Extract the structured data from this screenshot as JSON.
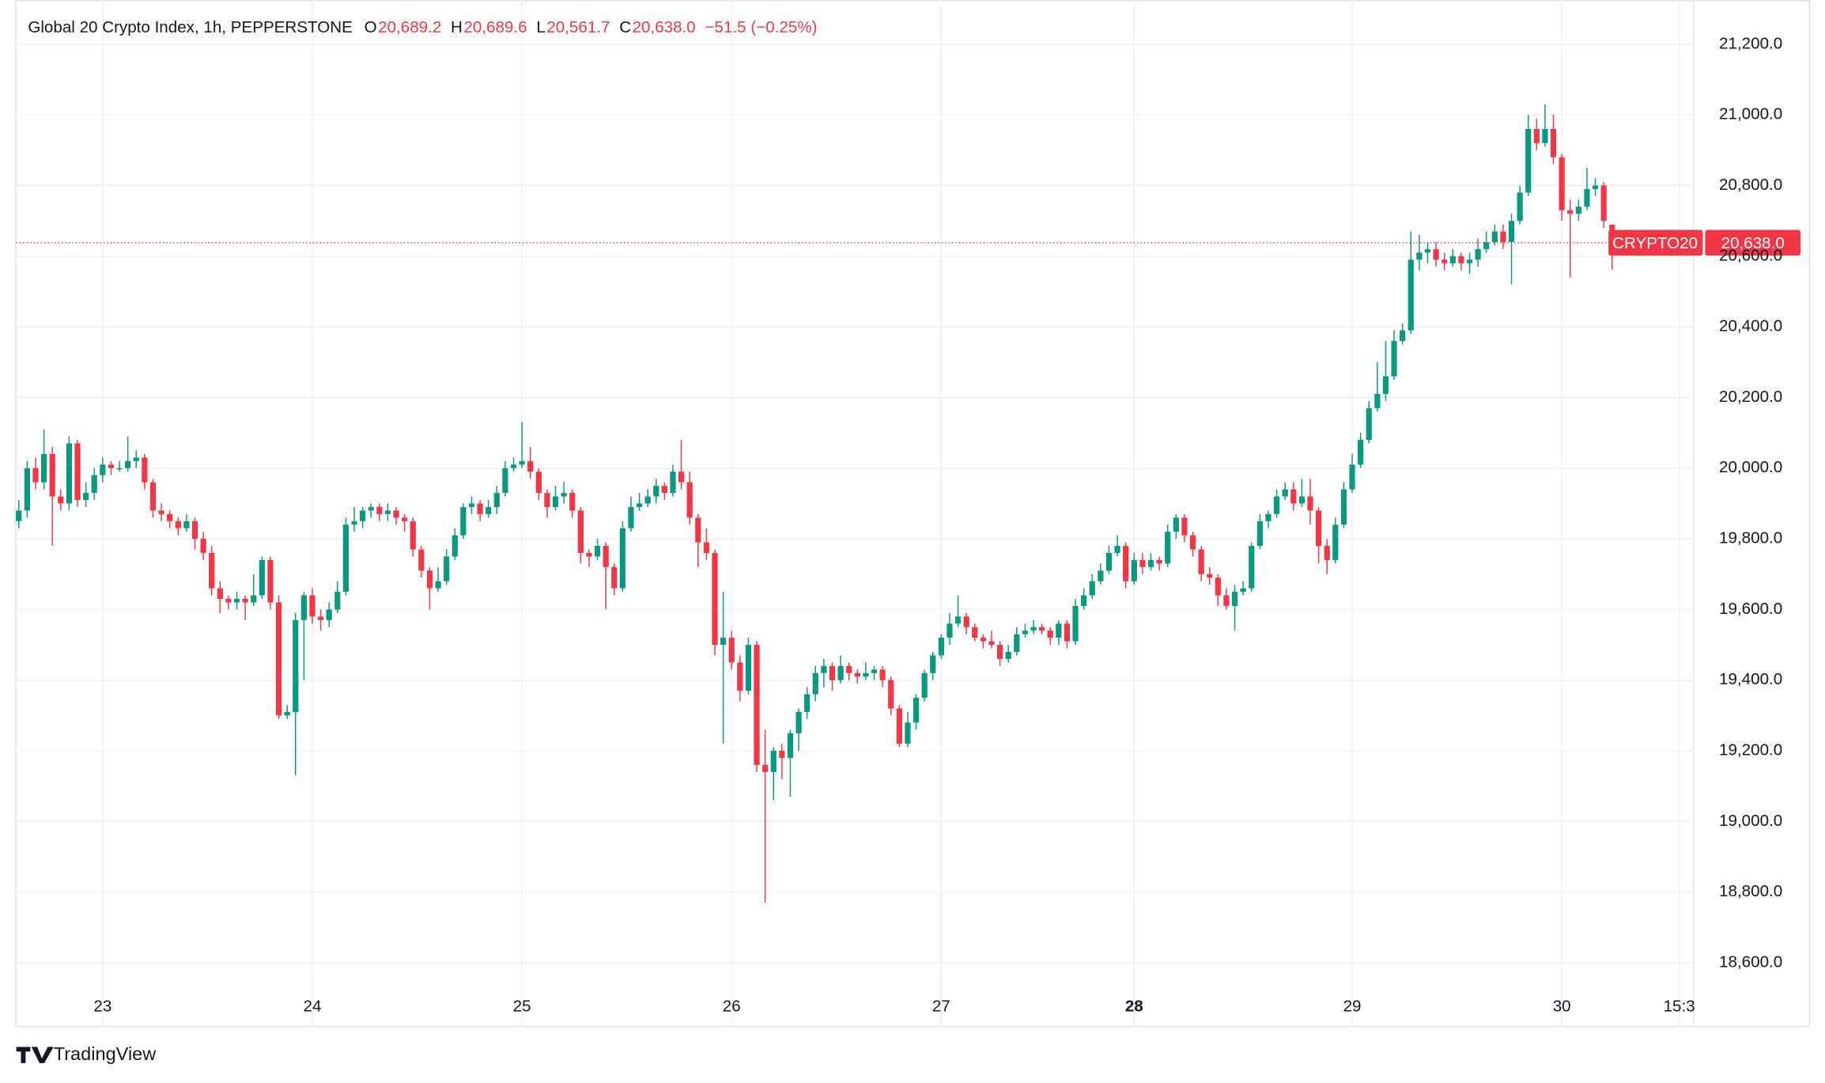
{
  "chart_data": {
    "type": "candlestick",
    "title": "Global 20 Crypto Index, 1h, PEPPERSTONE",
    "legend": {
      "open_label": "O",
      "open": "20,689.2",
      "high_label": "H",
      "high": "20,689.6",
      "low_label": "L",
      "low": "20,561.7",
      "close_label": "C",
      "close": "20,638.0",
      "change": "−51.5 (−0.25%)"
    },
    "symbol": "CRYPTO20",
    "last_price": 20638.0,
    "last_price_label": "20,638.0",
    "watermark": "TradingView",
    "up_color": "#089981",
    "down_color": "#f23645",
    "grid": true,
    "xlim": [
      -0.3,
      199.7
    ],
    "ylim": [
      18418,
      21325
    ],
    "xticks": [
      {
        "value": 10,
        "label": "23"
      },
      {
        "value": 35,
        "label": "24"
      },
      {
        "value": 60,
        "label": "25"
      },
      {
        "value": 85,
        "label": "26"
      },
      {
        "value": 110,
        "label": "27"
      },
      {
        "value": 133,
        "label": "28"
      },
      {
        "value": 159,
        "label": "29"
      },
      {
        "value": 184,
        "label": "30"
      },
      {
        "value": 198,
        "label": "15:3"
      }
    ],
    "bold_xtick": 5,
    "yticks": [
      {
        "value": 18600,
        "label": "18,600.0"
      },
      {
        "value": 18800,
        "label": "18,800.0"
      },
      {
        "value": 19000,
        "label": "19,000.0"
      },
      {
        "value": 19200,
        "label": "19,200.0"
      },
      {
        "value": 19400,
        "label": "19,400.0"
      },
      {
        "value": 19600,
        "label": "19,600.0"
      },
      {
        "value": 19800,
        "label": "19,800.0"
      },
      {
        "value": 20000,
        "label": "20,000.0"
      },
      {
        "value": 20200,
        "label": "20,200.0"
      },
      {
        "value": 20400,
        "label": "20,400.0"
      },
      {
        "value": 20600,
        "label": "20,600.0"
      },
      {
        "value": 20800,
        "label": "20,800.0"
      },
      {
        "value": 21000,
        "label": "21,000.0"
      },
      {
        "value": 21200,
        "label": "21,200.0"
      }
    ],
    "ohlc": [
      [
        19850,
        19910,
        19830,
        19880
      ],
      [
        19880,
        20020,
        19860,
        20000
      ],
      [
        20000,
        20030,
        19940,
        19960
      ],
      [
        19960,
        20110,
        19940,
        20040
      ],
      [
        20040,
        20060,
        19780,
        19920
      ],
      [
        19920,
        19940,
        19880,
        19900
      ],
      [
        19900,
        20090,
        19880,
        20070
      ],
      [
        20070,
        20080,
        19890,
        19910
      ],
      [
        19910,
        19960,
        19890,
        19930
      ],
      [
        19930,
        20000,
        19910,
        19980
      ],
      [
        19980,
        20030,
        19960,
        20010
      ],
      [
        20010,
        20020,
        19980,
        20000
      ],
      [
        20000,
        20020,
        19990,
        20000
      ],
      [
        20000,
        20090,
        19990,
        20020
      ],
      [
        20020,
        20050,
        20000,
        20030
      ],
      [
        20030,
        20040,
        19940,
        19960
      ],
      [
        19960,
        19970,
        19860,
        19880
      ],
      [
        19880,
        19900,
        19850,
        19870
      ],
      [
        19870,
        19880,
        19830,
        19850
      ],
      [
        19850,
        19860,
        19810,
        19830
      ],
      [
        19830,
        19870,
        19820,
        19850
      ],
      [
        19850,
        19860,
        19770,
        19800
      ],
      [
        19800,
        19820,
        19740,
        19760
      ],
      [
        19760,
        19780,
        19640,
        19660
      ],
      [
        19660,
        19680,
        19590,
        19630
      ],
      [
        19630,
        19640,
        19600,
        19620
      ],
      [
        19620,
        19650,
        19600,
        19630
      ],
      [
        19630,
        19640,
        19570,
        19620
      ],
      [
        19620,
        19700,
        19610,
        19640
      ],
      [
        19640,
        19750,
        19630,
        19740
      ],
      [
        19740,
        19750,
        19600,
        19620
      ],
      [
        19620,
        19640,
        19290,
        19300
      ],
      [
        19300,
        19330,
        19290,
        19310
      ],
      [
        19310,
        19590,
        19130,
        19570
      ],
      [
        19570,
        19650,
        19400,
        19640
      ],
      [
        19640,
        19660,
        19560,
        19580
      ],
      [
        19580,
        19600,
        19540,
        19570
      ],
      [
        19570,
        19620,
        19550,
        19600
      ],
      [
        19600,
        19680,
        19590,
        19650
      ],
      [
        19650,
        19860,
        19640,
        19840
      ],
      [
        19840,
        19890,
        19820,
        19850
      ],
      [
        19850,
        19890,
        19830,
        19880
      ],
      [
        19880,
        19900,
        19860,
        19890
      ],
      [
        19890,
        19900,
        19850,
        19870
      ],
      [
        19870,
        19900,
        19850,
        19880
      ],
      [
        19880,
        19890,
        19840,
        19860
      ],
      [
        19860,
        19870,
        19820,
        19850
      ],
      [
        19850,
        19860,
        19750,
        19770
      ],
      [
        19770,
        19780,
        19690,
        19710
      ],
      [
        19710,
        19720,
        19600,
        19660
      ],
      [
        19660,
        19720,
        19650,
        19680
      ],
      [
        19680,
        19770,
        19670,
        19750
      ],
      [
        19750,
        19830,
        19740,
        19810
      ],
      [
        19810,
        19900,
        19800,
        19890
      ],
      [
        19890,
        19920,
        19870,
        19900
      ],
      [
        19900,
        19910,
        19850,
        19870
      ],
      [
        19870,
        19910,
        19860,
        19890
      ],
      [
        19890,
        19950,
        19870,
        19930
      ],
      [
        19930,
        20020,
        19920,
        20000
      ],
      [
        20000,
        20030,
        19990,
        20010
      ],
      [
        20010,
        20130,
        20000,
        20020
      ],
      [
        20020,
        20060,
        19970,
        19990
      ],
      [
        19990,
        20000,
        19910,
        19930
      ],
      [
        19930,
        19940,
        19860,
        19890
      ],
      [
        19890,
        19950,
        19880,
        19920
      ],
      [
        19920,
        19960,
        19900,
        19930
      ],
      [
        19930,
        19940,
        19860,
        19880
      ],
      [
        19880,
        19890,
        19730,
        19760
      ],
      [
        19760,
        19770,
        19720,
        19750
      ],
      [
        19750,
        19800,
        19740,
        19780
      ],
      [
        19780,
        19790,
        19600,
        19720
      ],
      [
        19720,
        19730,
        19640,
        19660
      ],
      [
        19660,
        19850,
        19650,
        19830
      ],
      [
        19830,
        19920,
        19820,
        19890
      ],
      [
        19890,
        19930,
        19880,
        19900
      ],
      [
        19900,
        19940,
        19890,
        19920
      ],
      [
        19920,
        19970,
        19900,
        19950
      ],
      [
        19950,
        19960,
        19910,
        19930
      ],
      [
        19930,
        20010,
        19920,
        19990
      ],
      [
        19990,
        20080,
        19940,
        19960
      ],
      [
        19960,
        19990,
        19840,
        19860
      ],
      [
        19860,
        19870,
        19720,
        19790
      ],
      [
        19790,
        19830,
        19740,
        19760
      ],
      [
        19760,
        19770,
        19470,
        19500
      ],
      [
        19500,
        19650,
        19220,
        19520
      ],
      [
        19520,
        19540,
        19430,
        19450
      ],
      [
        19450,
        19470,
        19340,
        19370
      ],
      [
        19370,
        19520,
        19360,
        19500
      ],
      [
        19500,
        19510,
        19140,
        19160
      ],
      [
        19160,
        19260,
        18770,
        19140
      ],
      [
        19140,
        19210,
        19060,
        19200
      ],
      [
        19200,
        19220,
        19120,
        19180
      ],
      [
        19180,
        19260,
        19070,
        19250
      ],
      [
        19250,
        19320,
        19200,
        19310
      ],
      [
        19310,
        19380,
        19290,
        19360
      ],
      [
        19360,
        19440,
        19340,
        19420
      ],
      [
        19420,
        19460,
        19380,
        19440
      ],
      [
        19440,
        19450,
        19370,
        19400
      ],
      [
        19400,
        19470,
        19390,
        19440
      ],
      [
        19440,
        19450,
        19400,
        19420
      ],
      [
        19420,
        19430,
        19390,
        19410
      ],
      [
        19410,
        19450,
        19400,
        19420
      ],
      [
        19420,
        19440,
        19400,
        19430
      ],
      [
        19430,
        19440,
        19380,
        19400
      ],
      [
        19400,
        19410,
        19300,
        19320
      ],
      [
        19320,
        19330,
        19210,
        19220
      ],
      [
        19220,
        19310,
        19210,
        19280
      ],
      [
        19280,
        19360,
        19260,
        19350
      ],
      [
        19350,
        19430,
        19340,
        19420
      ],
      [
        19420,
        19480,
        19400,
        19470
      ],
      [
        19470,
        19530,
        19460,
        19520
      ],
      [
        19520,
        19590,
        19500,
        19560
      ],
      [
        19560,
        19640,
        19550,
        19580
      ],
      [
        19580,
        19590,
        19530,
        19550
      ],
      [
        19550,
        19560,
        19510,
        19520
      ],
      [
        19520,
        19530,
        19490,
        19510
      ],
      [
        19510,
        19540,
        19490,
        19500
      ],
      [
        19500,
        19510,
        19440,
        19460
      ],
      [
        19460,
        19500,
        19450,
        19480
      ],
      [
        19480,
        19550,
        19470,
        19530
      ],
      [
        19530,
        19560,
        19520,
        19540
      ],
      [
        19540,
        19570,
        19530,
        19550
      ],
      [
        19550,
        19560,
        19530,
        19540
      ],
      [
        19540,
        19550,
        19500,
        19520
      ],
      [
        19520,
        19570,
        19500,
        19560
      ],
      [
        19560,
        19570,
        19490,
        19510
      ],
      [
        19510,
        19630,
        19500,
        19610
      ],
      [
        19610,
        19660,
        19600,
        19640
      ],
      [
        19640,
        19700,
        19630,
        19680
      ],
      [
        19680,
        19730,
        19670,
        19710
      ],
      [
        19710,
        19780,
        19700,
        19760
      ],
      [
        19760,
        19810,
        19750,
        19780
      ],
      [
        19780,
        19790,
        19660,
        19680
      ],
      [
        19680,
        19760,
        19670,
        19740
      ],
      [
        19740,
        19760,
        19700,
        19720
      ],
      [
        19720,
        19760,
        19710,
        19740
      ],
      [
        19740,
        19750,
        19710,
        19730
      ],
      [
        19730,
        19840,
        19720,
        19820
      ],
      [
        19820,
        19870,
        19800,
        19860
      ],
      [
        19860,
        19870,
        19790,
        19810
      ],
      [
        19810,
        19820,
        19750,
        19770
      ],
      [
        19770,
        19780,
        19680,
        19700
      ],
      [
        19700,
        19720,
        19670,
        19690
      ],
      [
        19690,
        19700,
        19610,
        19640
      ],
      [
        19640,
        19660,
        19600,
        19610
      ],
      [
        19610,
        19670,
        19540,
        19650
      ],
      [
        19650,
        19680,
        19640,
        19660
      ],
      [
        19660,
        19790,
        19650,
        19780
      ],
      [
        19780,
        19870,
        19770,
        19850
      ],
      [
        19850,
        19880,
        19830,
        19870
      ],
      [
        19870,
        19940,
        19860,
        19920
      ],
      [
        19920,
        19960,
        19910,
        19940
      ],
      [
        19940,
        19960,
        19880,
        19900
      ],
      [
        19900,
        19970,
        19890,
        19920
      ],
      [
        19920,
        19970,
        19840,
        19880
      ],
      [
        19880,
        19890,
        19730,
        19780
      ],
      [
        19780,
        19800,
        19700,
        19740
      ],
      [
        19740,
        19860,
        19730,
        19840
      ],
      [
        19840,
        19960,
        19830,
        19940
      ],
      [
        19940,
        20040,
        19930,
        20010
      ],
      [
        20010,
        20100,
        20000,
        20080
      ],
      [
        20080,
        20190,
        20070,
        20170
      ],
      [
        20170,
        20300,
        20160,
        20210
      ],
      [
        20210,
        20360,
        20190,
        20260
      ],
      [
        20260,
        20390,
        20250,
        20360
      ],
      [
        20360,
        20410,
        20350,
        20390
      ],
      [
        20390,
        20670,
        20380,
        20590
      ],
      [
        20590,
        20660,
        20560,
        20610
      ],
      [
        20610,
        20640,
        20580,
        20620
      ],
      [
        20620,
        20640,
        20570,
        20590
      ],
      [
        20590,
        20610,
        20560,
        20580
      ],
      [
        20580,
        20620,
        20570,
        20600
      ],
      [
        20600,
        20610,
        20560,
        20580
      ],
      [
        20580,
        20610,
        20550,
        20590
      ],
      [
        20590,
        20650,
        20570,
        20620
      ],
      [
        20620,
        20670,
        20610,
        20640
      ],
      [
        20640,
        20690,
        20630,
        20670
      ],
      [
        20670,
        20690,
        20620,
        20640
      ],
      [
        20640,
        20720,
        20520,
        20700
      ],
      [
        20700,
        20800,
        20690,
        20780
      ],
      [
        20780,
        21000,
        20770,
        20960
      ],
      [
        20960,
        20990,
        20900,
        20920
      ],
      [
        20920,
        21030,
        20910,
        20960
      ],
      [
        20960,
        21000,
        20860,
        20880
      ],
      [
        20880,
        20890,
        20700,
        20730
      ],
      [
        20730,
        20760,
        20540,
        20720
      ],
      [
        20720,
        20760,
        20700,
        20740
      ],
      [
        20740,
        20850,
        20730,
        20790
      ],
      [
        20790,
        20820,
        20770,
        20800
      ],
      [
        20800,
        20810,
        20680,
        20700
      ],
      [
        20689.2,
        20689.6,
        20561.7,
        20638.0
      ]
    ]
  }
}
